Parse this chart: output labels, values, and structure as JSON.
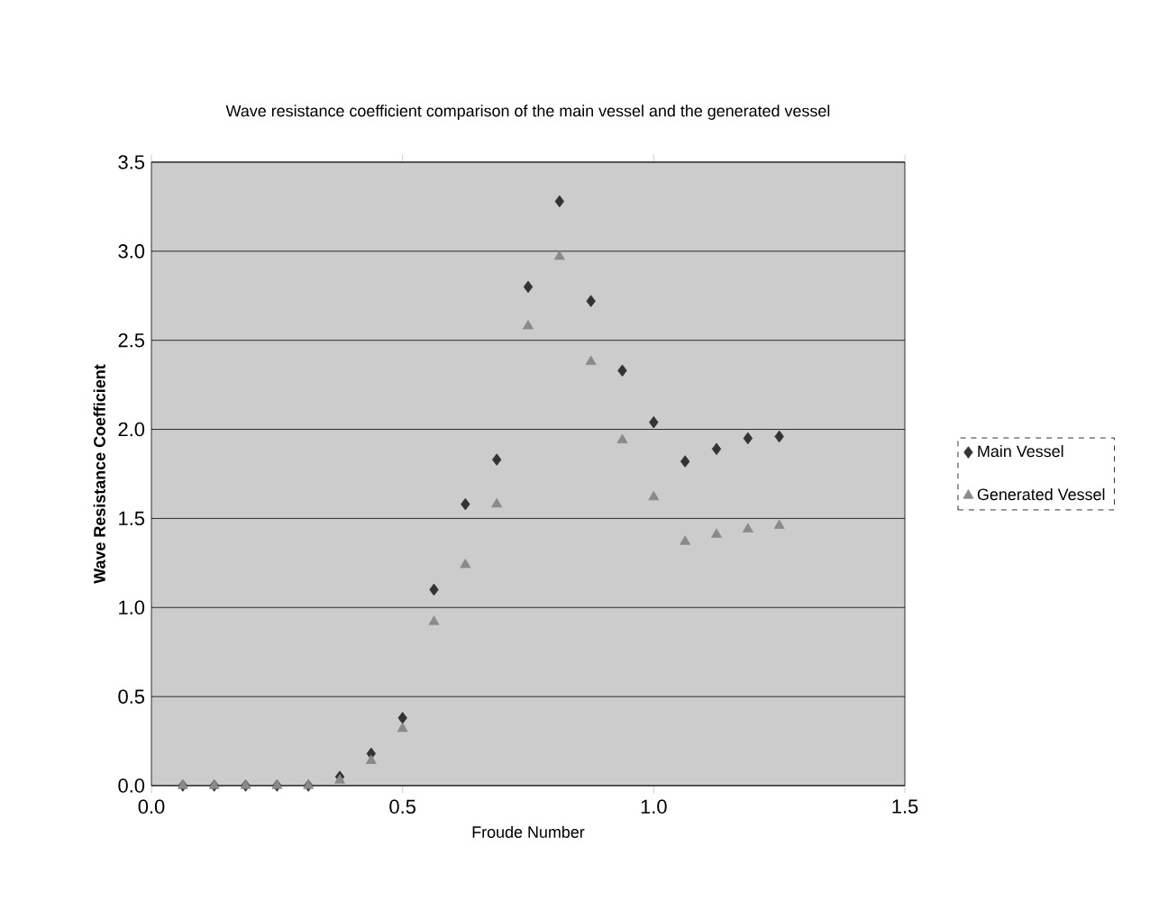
{
  "chart_data": {
    "type": "scatter",
    "title": "Wave resistance coefficient comparison of the main vessel and the generated vessel",
    "xlabel": "Froude Number",
    "ylabel": "Wave Resistance Coefficient",
    "x": [
      0.0625,
      0.125,
      0.1875,
      0.25,
      0.3125,
      0.375,
      0.4375,
      0.5,
      0.5625,
      0.625,
      0.6875,
      0.75,
      0.8125,
      0.875,
      0.9375,
      1.0,
      1.0625,
      1.125,
      1.1875,
      1.25
    ],
    "series": [
      {
        "name": "Main Vessel",
        "color": "#333333",
        "marker": "diamond",
        "values": [
          0,
          0,
          0,
          0,
          0,
          0.05,
          0.18,
          0.38,
          1.1,
          1.58,
          1.83,
          2.8,
          3.28,
          2.72,
          2.33,
          2.04,
          1.82,
          1.89,
          1.95,
          1.96
        ]
      },
      {
        "name": "Generated Vessel",
        "color": "#8a8a8a",
        "marker": "triangle",
        "values": [
          0,
          0,
          0,
          0,
          0,
          0.03,
          0.14,
          0.32,
          0.92,
          1.24,
          1.58,
          2.58,
          2.97,
          2.38,
          1.94,
          1.62,
          1.37,
          1.41,
          1.44,
          1.46
        ]
      }
    ],
    "xlim": [
      0,
      1.5
    ],
    "xticks": [
      {
        "value": 0,
        "label": "0.0"
      },
      0.5,
      {
        "value": 1,
        "label": "1.0"
      },
      1.5
    ],
    "ylim": [
      0,
      3.5
    ],
    "yticks": [
      {
        "value": 0,
        "label": "0.0"
      },
      0.5,
      {
        "value": 1,
        "label": "1.0"
      },
      1.5,
      {
        "value": 2,
        "label": "2.0"
      },
      2.5,
      {
        "value": 3,
        "label": "3.0"
      },
      3.5
    ],
    "grid": "y",
    "legend": "right"
  }
}
